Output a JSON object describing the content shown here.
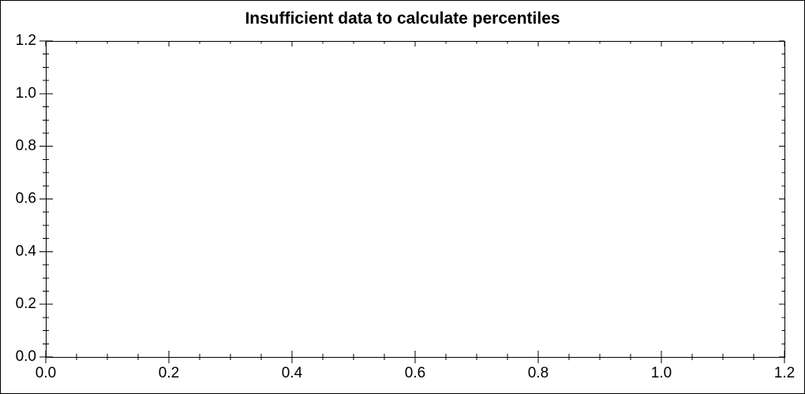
{
  "figure": {
    "background": "#ffffff",
    "border_color": "#000000"
  },
  "chart_data": {
    "type": "scatter",
    "title": "Insufficient data to calculate percentiles",
    "series": [],
    "xlabel": "",
    "ylabel": "",
    "xlim": [
      0,
      1.2
    ],
    "ylim": [
      0,
      1.2
    ],
    "x_major_ticks": [
      0.0,
      0.2,
      0.4,
      0.6,
      0.8,
      1.0,
      1.2
    ],
    "y_major_ticks": [
      0.0,
      0.2,
      0.4,
      0.6,
      0.8,
      1.0,
      1.2
    ],
    "x_tick_labels": [
      "0.0",
      "0.2",
      "0.4",
      "0.6",
      "0.8",
      "1.0",
      "1.2"
    ],
    "y_tick_labels": [
      "0.0",
      "0.2",
      "0.4",
      "0.6",
      "0.8",
      "1.0",
      "1.2"
    ],
    "minor_tick_interval": 0.05,
    "grid": false,
    "legend": null,
    "axis_color": "#000000",
    "text_color": "#000000"
  }
}
